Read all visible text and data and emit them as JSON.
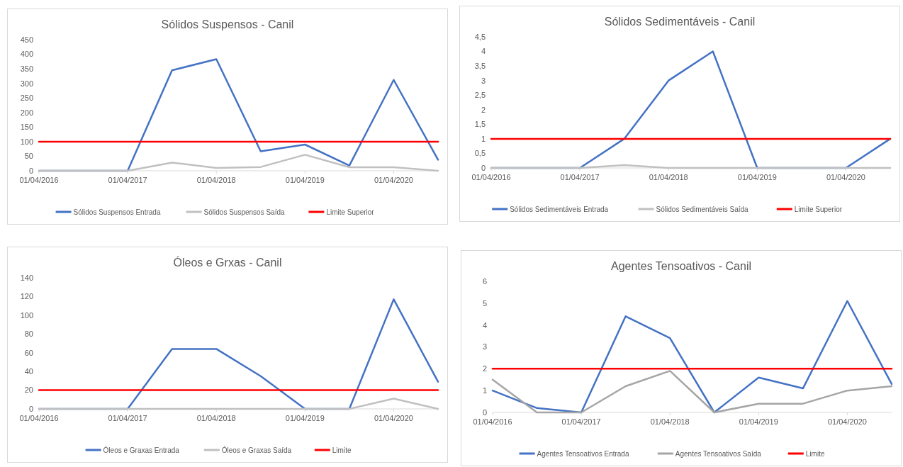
{
  "chart_data": [
    {
      "type": "line",
      "title": "Sólidos Suspensos - Canil",
      "categories": [
        "01/04/2016",
        null,
        "01/04/2017",
        null,
        "01/04/2018",
        null,
        "01/04/2019",
        null,
        "01/04/2020",
        null
      ],
      "series": [
        {
          "name": "Sólidos Suspensos Entrada",
          "color": "#4472c4",
          "values": [
            0,
            0,
            0,
            345,
            383,
            67,
            90,
            18,
            312,
            38
          ]
        },
        {
          "name": "Sólidos Suspensos Saída",
          "color": "#c0c0c0",
          "values": [
            0,
            0,
            0,
            28,
            10,
            13,
            55,
            12,
            12,
            0
          ]
        },
        {
          "name": "Limite Superior",
          "color": "#ff0000",
          "values": [
            100,
            100,
            100,
            100,
            100,
            100,
            100,
            100,
            100,
            100
          ]
        }
      ],
      "ylim": [
        0,
        450
      ],
      "yticks": [
        0,
        50,
        100,
        150,
        200,
        250,
        300,
        350,
        400,
        450
      ],
      "legend": "bottom"
    },
    {
      "type": "line",
      "title": "Sólidos Sedimentáveis - Canil",
      "categories": [
        "01/04/2016",
        null,
        "01/04/2017",
        null,
        "01/04/2018",
        null,
        "01/04/2019",
        null,
        "01/04/2020",
        null
      ],
      "series": [
        {
          "name": "Sólidos Sedimentáveis Entrada",
          "color": "#4472c4",
          "values": [
            0,
            0,
            0,
            1,
            3,
            4,
            0,
            0,
            0,
            1
          ]
        },
        {
          "name": "Sólidos Sedimentáveis Saída",
          "color": "#c0c0c0",
          "values": [
            0,
            0,
            0,
            0.1,
            0,
            0,
            0,
            0,
            0,
            0
          ]
        },
        {
          "name": "Limite Superior",
          "color": "#ff0000",
          "values": [
            1,
            1,
            1,
            1,
            1,
            1,
            1,
            1,
            1,
            1
          ]
        }
      ],
      "ylim": [
        0,
        4.5
      ],
      "yticks": [
        0,
        {
          "value": 0.5,
          "label": "0,5"
        },
        1,
        {
          "value": 1.5,
          "label": "1,5"
        },
        2,
        {
          "value": 2.5,
          "label": "2,5"
        },
        3,
        {
          "value": 3.5,
          "label": "3,5"
        },
        4,
        {
          "value": 4.5,
          "label": "4,5"
        }
      ],
      "legend": "bottom"
    },
    {
      "type": "line",
      "title": "Óleos e Grxas - Canil",
      "categories": [
        "01/04/2016",
        null,
        "01/04/2017",
        null,
        "01/04/2018",
        null,
        "01/04/2019",
        null,
        "01/04/2020",
        null
      ],
      "series": [
        {
          "name": "Óleos e Graxas Entrada",
          "color": "#4472c4",
          "values": [
            0,
            0,
            0,
            64,
            64,
            35,
            0,
            0,
            117,
            29
          ]
        },
        {
          "name": "Óleos e Graxas Saída",
          "color": "#c0c0c0",
          "values": [
            0,
            0,
            0,
            0,
            0,
            0,
            0,
            0,
            11,
            0
          ]
        },
        {
          "name": "Limite",
          "color": "#ff0000",
          "values": [
            20,
            20,
            20,
            20,
            20,
            20,
            20,
            20,
            20,
            20
          ]
        }
      ],
      "ylim": [
        0,
        140
      ],
      "yticks": [
        0,
        20,
        40,
        60,
        80,
        100,
        120,
        140
      ],
      "legend": "bottom"
    },
    {
      "type": "line",
      "title": "Agentes Tensoativos - Canil",
      "categories": [
        "01/04/2016",
        null,
        "01/04/2017",
        null,
        "01/04/2018",
        null,
        "01/04/2019",
        null,
        "01/04/2020",
        null
      ],
      "series": [
        {
          "name": "Agentes Tensoativos Entrada",
          "color": "#4472c4",
          "values": [
            1.0,
            0.2,
            0,
            4.4,
            3.4,
            0,
            1.6,
            1.1,
            5.1,
            1.3
          ]
        },
        {
          "name": "Agentes Tensoativos Saída",
          "color": "#a5a5a5",
          "values": [
            1.5,
            0,
            0,
            1.2,
            1.9,
            0,
            0.4,
            0.4,
            1.0,
            1.2
          ]
        },
        {
          "name": "Limite",
          "color": "#ff0000",
          "values": [
            2,
            2,
            2,
            2,
            2,
            2,
            2,
            2,
            2,
            2
          ]
        }
      ],
      "ylim": [
        0,
        6
      ],
      "yticks": [
        0,
        1,
        2,
        3,
        4,
        5,
        6
      ],
      "legend": "bottom"
    }
  ]
}
